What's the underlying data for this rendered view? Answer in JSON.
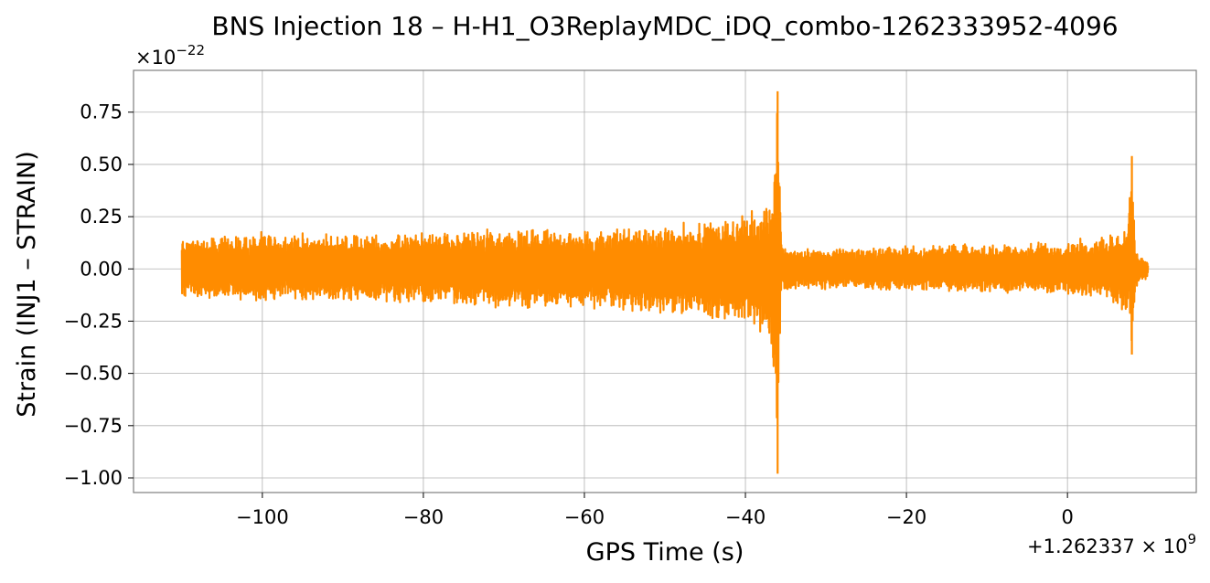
{
  "chart_data": {
    "type": "line",
    "title": "BNS Injection 18 – H-H1_O3ReplayMDC_iDQ_combo-1262333952-4096",
    "xlabel": "GPS Time (s)",
    "ylabel": "Strain (INJ1 – STRAIN)",
    "y_scale_label": "×10",
    "y_scale_exponent": "−22",
    "x_offset_label": "+1.262337 × 10",
    "x_offset_exponent": "9",
    "xlim": [
      -116,
      16
    ],
    "ylim": [
      -1.07,
      0.95
    ],
    "x_ticks": [
      -100,
      -80,
      -60,
      -40,
      -20,
      0
    ],
    "x_tick_labels": [
      "−100",
      "−80",
      "−60",
      "−40",
      "−20",
      "0"
    ],
    "y_ticks": [
      0.75,
      0.5,
      0.25,
      0.0,
      -0.25,
      -0.5,
      -0.75,
      -1.0
    ],
    "y_tick_labels": [
      "0.75",
      "0.50",
      "0.25",
      "0.00",
      "−0.25",
      "−0.50",
      "−0.75",
      "−1.00"
    ],
    "grid": true,
    "series_color": "#ff8c00",
    "series": [
      {
        "name": "",
        "x_range": [
          -110,
          10
        ],
        "envelope": {
          "x": [
            -110,
            -100,
            -90,
            -80,
            -70,
            -60,
            -50,
            -45,
            -40,
            -37,
            -36.5,
            -36,
            -35.5,
            -34,
            -30,
            -20,
            -10,
            0,
            5,
            7.5,
            8,
            8.5,
            9,
            10
          ],
          "upper": [
            0.16,
            0.18,
            0.17,
            0.18,
            0.2,
            0.19,
            0.22,
            0.24,
            0.26,
            0.35,
            0.45,
            0.85,
            0.12,
            0.1,
            0.1,
            0.12,
            0.12,
            0.14,
            0.17,
            0.22,
            0.54,
            0.1,
            0.07,
            0.05
          ],
          "lower": [
            -0.14,
            -0.16,
            -0.16,
            -0.17,
            -0.19,
            -0.2,
            -0.22,
            -0.25,
            -0.28,
            -0.4,
            -0.6,
            -0.98,
            -0.12,
            -0.1,
            -0.1,
            -0.11,
            -0.12,
            -0.13,
            -0.16,
            -0.22,
            -0.41,
            -0.1,
            -0.07,
            -0.05
          ]
        }
      }
    ]
  }
}
